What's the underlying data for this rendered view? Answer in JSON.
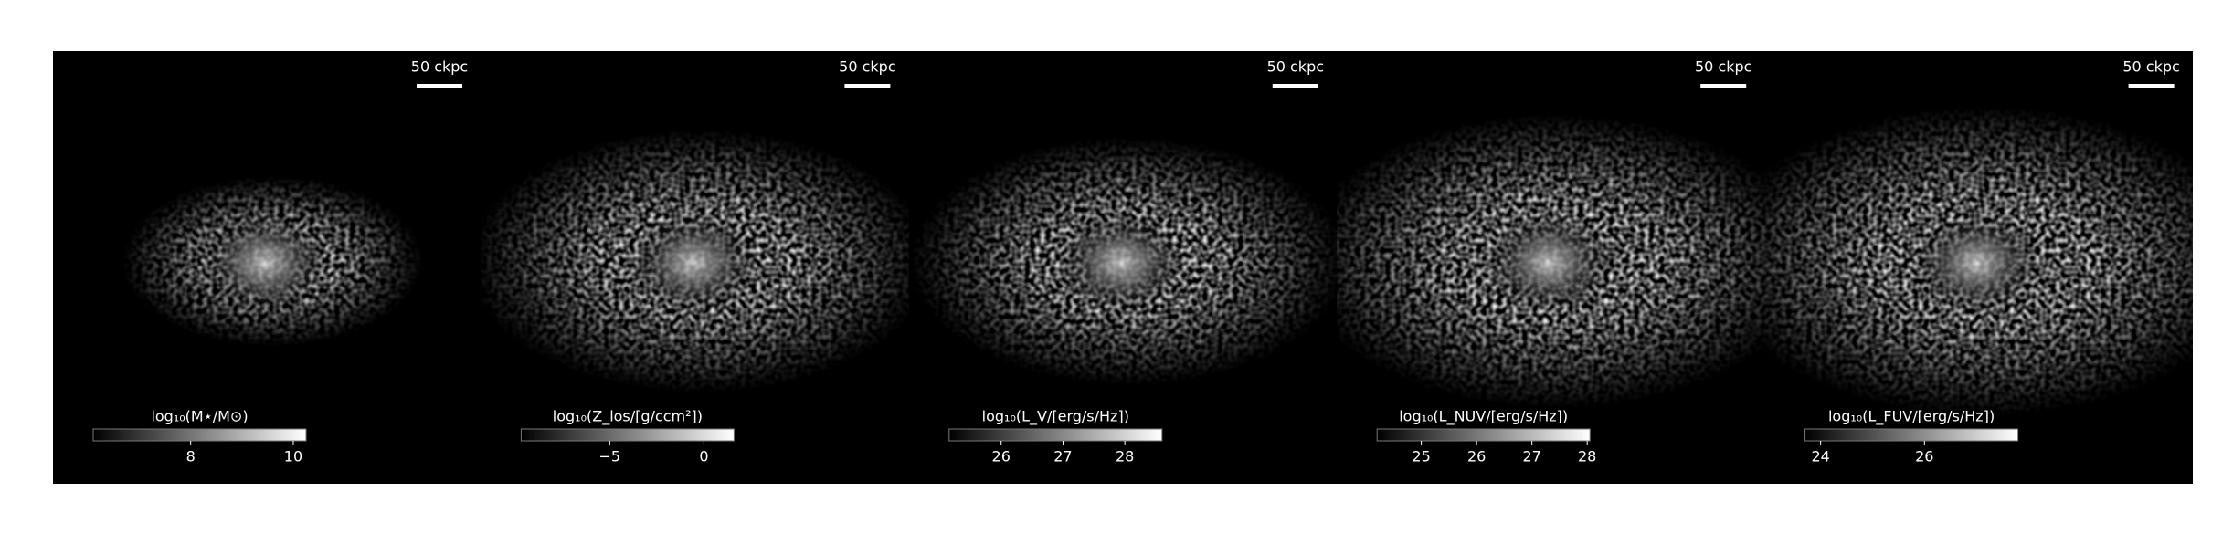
{
  "chart_data": [
    {
      "type": "image",
      "colormap": "gray",
      "scale_bar_label": "50 ckpc",
      "colorbar_label": "log₁₀(M⋆/M⊙)",
      "clim": [
        6.1,
        10.25
      ],
      "cticks": [
        8,
        10
      ]
    },
    {
      "type": "image",
      "colormap": "gray",
      "scale_bar_label": "50 ckpc",
      "colorbar_label": "log₁₀(Z_los/[g/ccm²])",
      "clim": [
        -9.7,
        1.6
      ],
      "cticks": [
        {
          "value": -5,
          "label": "−5"
        },
        0
      ]
    },
    {
      "type": "image",
      "colormap": "gray",
      "scale_bar_label": "50 ckpc",
      "colorbar_label": "log₁₀(L_V/[erg/s/Hz])",
      "clim": [
        25.16,
        28.6
      ],
      "cticks": [
        26,
        27,
        28
      ]
    },
    {
      "type": "image",
      "colormap": "gray",
      "scale_bar_label": "50 ckpc",
      "colorbar_label": "log₁₀(L_NUV/[erg/s/Hz])",
      "clim": [
        24.2,
        28.05
      ],
      "cticks": [
        25,
        26,
        27,
        28
      ]
    },
    {
      "type": "image",
      "colormap": "gray",
      "scale_bar_label": "50 ckpc",
      "colorbar_label": "log₁₀(L_FUV/[erg/s/Hz])",
      "clim": [
        23.7,
        27.8
      ],
      "cticks": [
        24,
        26
      ]
    }
  ]
}
